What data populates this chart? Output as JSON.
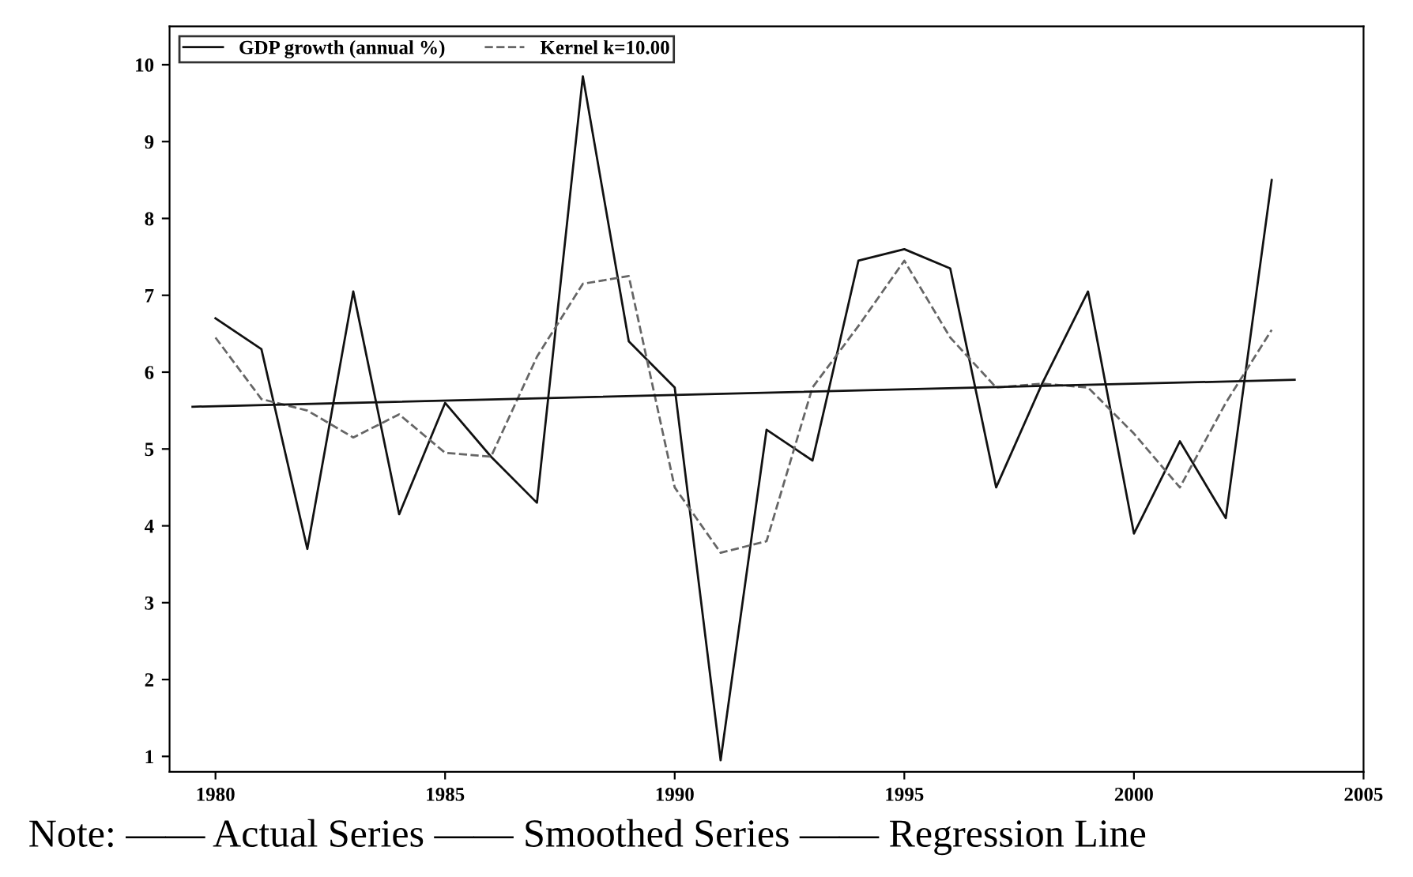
{
  "chart_data": {
    "type": "line",
    "xlim": [
      1979,
      2005
    ],
    "ylim": [
      0.8,
      10.5
    ],
    "xticks": [
      1980,
      1985,
      1990,
      1995,
      2000,
      2005
    ],
    "yticks": [
      1,
      2,
      3,
      4,
      5,
      6,
      7,
      8,
      9,
      10
    ],
    "grid": false,
    "legend": "top left",
    "marker": "none",
    "series": [
      {
        "name": "GDP growth (annual %)",
        "color": "#111111",
        "line_style": "solid",
        "x": [
          1980,
          1981,
          1982,
          1983,
          1984,
          1985,
          1986,
          1987,
          1988,
          1989,
          1990,
          1991,
          1992,
          1993,
          1994,
          1995,
          1996,
          1997,
          1998,
          1999,
          2000,
          2001,
          2002,
          2003
        ],
        "values": [
          6.7,
          6.3,
          3.7,
          7.05,
          4.15,
          5.6,
          4.9,
          4.3,
          9.85,
          6.4,
          5.8,
          0.95,
          5.25,
          4.85,
          7.45,
          7.6,
          7.35,
          4.5,
          5.85,
          7.05,
          3.9,
          5.1,
          4.1,
          8.5
        ]
      },
      {
        "name": "Kernel k=10.00",
        "color": "#666666",
        "line_style": "dashed",
        "x": [
          1980,
          1981,
          1982,
          1983,
          1984,
          1985,
          1986,
          1987,
          1988,
          1989,
          1990,
          1991,
          1992,
          1993,
          1994,
          1995,
          1996,
          1997,
          1998,
          1999,
          2000,
          2001,
          2002,
          2003
        ],
        "values": [
          6.45,
          5.65,
          5.5,
          5.15,
          5.45,
          4.95,
          4.9,
          6.2,
          7.15,
          7.25,
          4.5,
          3.65,
          3.8,
          5.8,
          6.6,
          7.45,
          6.45,
          5.8,
          5.85,
          5.8,
          5.2,
          4.5,
          5.6,
          6.55
        ]
      },
      {
        "color": "#111111",
        "line_style": "solid",
        "x": [
          1979.5,
          2003.5
        ],
        "values": [
          5.55,
          5.9
        ]
      }
    ],
    "annotations": [
      "Note: —— Actual Series —— Smoothed Series —— Regression Line"
    ]
  }
}
